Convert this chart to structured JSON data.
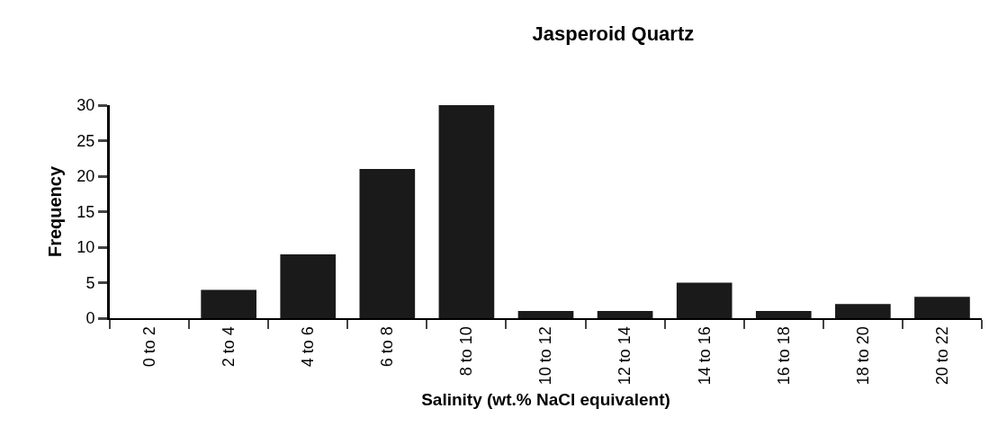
{
  "chart_data": {
    "type": "bar",
    "title": "Jasperoid Quartz",
    "xlabel": "Salinity (wt.% NaCl equivalent)",
    "ylabel": "Frequency",
    "categories": [
      "0 to 2",
      "2 to 4",
      "4 to 6",
      "6 to 8",
      "8 to 10",
      "10 to 12",
      "12 to 14",
      "14 to 16",
      "16 to 18",
      "18 to 20",
      "20 to 22"
    ],
    "values": [
      0,
      4,
      9,
      21,
      30,
      1,
      1,
      5,
      1,
      2,
      3
    ],
    "color": "#1a1a1a",
    "ylim": [
      0,
      30
    ],
    "yticks": [
      0,
      5,
      10,
      15,
      20,
      25,
      30
    ]
  }
}
